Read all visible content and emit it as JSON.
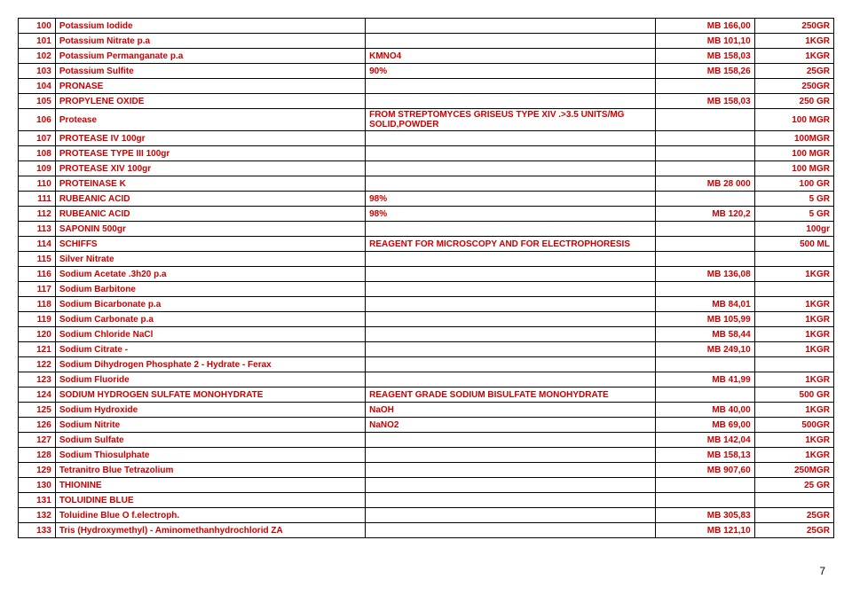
{
  "page_number": "7",
  "rows": [
    {
      "num": "100",
      "name": "Potassium Iodide",
      "spec": "",
      "mb": "MB 166,00",
      "qty": "250GR"
    },
    {
      "num": "101",
      "name": "Potassium Nitrate  p.a",
      "spec": "",
      "mb": "MB 101,10",
      "qty": "1KGR"
    },
    {
      "num": "102",
      "name": "Potassium Permanganate p.a",
      "spec": "KMNO4",
      "mb": "MB 158,03",
      "qty": "1KGR"
    },
    {
      "num": "103",
      "name": "Potassium Sulfite",
      "spec": "90%",
      "mb": "MB 158,26",
      "qty": "25GR"
    },
    {
      "num": "104",
      "name": "PRONASE",
      "spec": "",
      "mb": "",
      "qty": "250GR"
    },
    {
      "num": "105",
      "name": "PROPYLENE OXIDE",
      "spec": "",
      "mb": "MB 158,03",
      "qty": "250 GR"
    },
    {
      "num": "106",
      "name": "Protease",
      "spec": "FROM STREPTOMYCES GRISEUS TYPE XIV .>3.5 UNITS/MG SOLID,POWDER",
      "mb": "",
      "qty": "100 MGR"
    },
    {
      "num": "107",
      "name": "PROTEASE IV 100gr",
      "spec": "",
      "mb": "",
      "qty": "100MGR"
    },
    {
      "num": "108",
      "name": "PROTEASE TYPE III  100gr",
      "spec": "",
      "mb": "",
      "qty": "100 MGR"
    },
    {
      "num": "109",
      "name": "PROTEASE XIV  100gr",
      "spec": "",
      "mb": "",
      "qty": "100 MGR"
    },
    {
      "num": "110",
      "name": "PROTEINASE K",
      "spec": "",
      "mb": "MB 28 000",
      "qty": "100 GR"
    },
    {
      "num": "111",
      "name": "RUBEANIC ACID",
      "spec": "98%",
      "mb": "",
      "qty": "5 GR"
    },
    {
      "num": "112",
      "name": "RUBEANIC ACID",
      "spec": "98%",
      "mb": "MB 120,2",
      "qty": "5 GR"
    },
    {
      "num": "113",
      "name": "SAPONIN 500gr",
      "spec": "",
      "mb": "",
      "qty": "100gr"
    },
    {
      "num": "114",
      "name": "SCHIFFS",
      "spec": "REAGENT FOR MICROSCOPY AND FOR ELECTROPHORESIS",
      "mb": "",
      "qty": "500 ML"
    },
    {
      "num": "115",
      "name": "Silver Nitrate",
      "spec": "",
      "mb": "",
      "qty": ""
    },
    {
      "num": "116",
      "name": "Sodium Acetate .3h20 p.a",
      "spec": "",
      "mb": "MB 136,08",
      "qty": "1KGR"
    },
    {
      "num": "117",
      "name": "Sodium Barbitone",
      "spec": "",
      "mb": "",
      "qty": ""
    },
    {
      "num": "118",
      "name": "Sodium Bicarbonate p.a",
      "spec": "",
      "mb": "MB 84,01",
      "qty": "1KGR"
    },
    {
      "num": "119",
      "name": "Sodium Carbonate p.a",
      "spec": "",
      "mb": "MB 105,99",
      "qty": "1KGR"
    },
    {
      "num": "120",
      "name": "Sodium Chloride NaCl",
      "spec": "",
      "mb": "MB 58,44",
      "qty": "1KGR"
    },
    {
      "num": "121",
      "name": "Sodium Citrate -",
      "spec": "",
      "mb": "MB 249,10",
      "qty": "1KGR"
    },
    {
      "num": "122",
      "name": "Sodium Dihydrogen Phosphate 2 - Hydrate - Ferax",
      "spec": "",
      "mb": "",
      "qty": ""
    },
    {
      "num": "123",
      "name": "Sodium Fluoride",
      "spec": "",
      "mb": "MB 41,99",
      "qty": "1KGR"
    },
    {
      "num": "124",
      "name": "SODIUM HYDROGEN SULFATE MONOHYDRATE",
      "spec": "REAGENT GRADE SODIUM BISULFATE MONOHYDRATE",
      "mb": "",
      "qty": "500 GR"
    },
    {
      "num": "125",
      "name": "Sodium Hydroxide",
      "spec": " NaOH",
      "mb": "MB 40,00",
      "qty": "1KGR"
    },
    {
      "num": "126",
      "name": "Sodium Nitrite",
      "spec": "NaNO2",
      "mb": "MB 69,00",
      "qty": "500GR"
    },
    {
      "num": "127",
      "name": "Sodium Sulfate",
      "spec": "",
      "mb": "MB 142,04",
      "qty": "1KGR"
    },
    {
      "num": "128",
      "name": "Sodium Thiosulphate",
      "spec": "",
      "mb": "MB 158,13",
      "qty": "1KGR"
    },
    {
      "num": "129",
      "name": "Tetranitro Blue Tetrazolium",
      "spec": "",
      "mb": "MB 907,60",
      "qty": "250MGR"
    },
    {
      "num": "130",
      "name": "THIONINE",
      "spec": "",
      "mb": "",
      "qty": "25 GR"
    },
    {
      "num": "131",
      "name": "TOLUIDINE BLUE",
      "spec": "",
      "mb": "",
      "qty": ""
    },
    {
      "num": "132",
      "name": "Toluidine Blue O f.electroph.",
      "spec": "",
      "mb": "MB 305,83",
      "qty": "25GR"
    },
    {
      "num": "133",
      "name": "Tris (Hydroxymethyl) - Aminomethanhydrochlorid ZA",
      "spec": "",
      "mb": "MB 121,10",
      "qty": "25GR"
    }
  ]
}
